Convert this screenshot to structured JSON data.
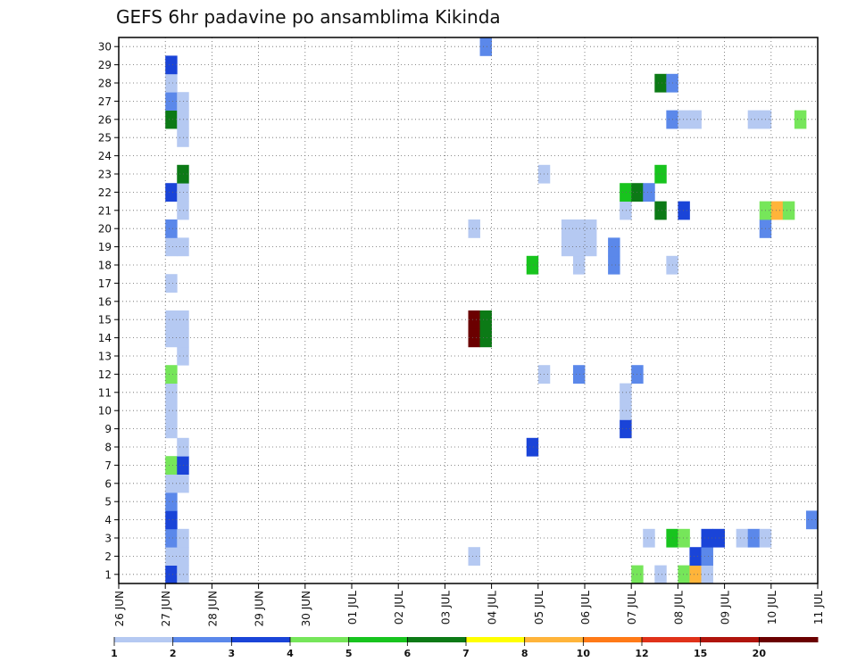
{
  "chart_data": {
    "type": "heatmap",
    "title": "GEFS 6hr padavine po ansamblima Kikinda",
    "x_tick_labels": [
      "26 JUN",
      "27 JUN",
      "28 JUN",
      "29 JUN",
      "30 JUN",
      "01 JUL",
      "02 JUL",
      "03 JUL",
      "04 JUL",
      "05 JUL",
      "06 JUL",
      "07 JUL",
      "08 JUL",
      "09 JUL",
      "10 JUL",
      "11 JUL"
    ],
    "y_tick_labels": [
      "1",
      "2",
      "3",
      "4",
      "5",
      "6",
      "7",
      "8",
      "9",
      "10",
      "11",
      "12",
      "13",
      "14",
      "15",
      "16",
      "17",
      "18",
      "19",
      "20",
      "21",
      "22",
      "23",
      "24",
      "25",
      "26",
      "27",
      "28",
      "29",
      "30"
    ],
    "ylim": [
      0.5,
      30.5
    ],
    "steps_per_day": 4,
    "grid": "dotted",
    "legend": {
      "position": "bottom",
      "labels": [
        "1",
        "2",
        "3",
        "4",
        "5",
        "6",
        "7",
        "8",
        "10",
        "12",
        "15",
        "20"
      ],
      "colors": [
        "#b5c9f2",
        "#5b88ea",
        "#1a44d8",
        "#76e65a",
        "#18c41e",
        "#0c7a16",
        "#ffff00",
        "#ffb43a",
        "#ff7a18",
        "#e0321a",
        "#b0140c",
        "#6b0000"
      ]
    },
    "cells": [
      {
        "t": 4,
        "m": 1,
        "c": "#1a44d8"
      },
      {
        "t": 5,
        "m": 1,
        "c": "#b5c9f2"
      },
      {
        "t": 4,
        "m": 2,
        "c": "#b5c9f2"
      },
      {
        "t": 5,
        "m": 2,
        "c": "#b5c9f2"
      },
      {
        "t": 4,
        "m": 3,
        "c": "#5b88ea"
      },
      {
        "t": 5,
        "m": 3,
        "c": "#b5c9f2"
      },
      {
        "t": 4,
        "m": 4,
        "c": "#1a44d8"
      },
      {
        "t": 4,
        "m": 5,
        "c": "#5b88ea"
      },
      {
        "t": 4,
        "m": 6,
        "c": "#b5c9f2"
      },
      {
        "t": 5,
        "m": 6,
        "c": "#b5c9f2"
      },
      {
        "t": 4,
        "m": 7,
        "c": "#76e65a"
      },
      {
        "t": 5,
        "m": 7,
        "c": "#1a44d8"
      },
      {
        "t": 5,
        "m": 8,
        "c": "#b5c9f2"
      },
      {
        "t": 4,
        "m": 9,
        "c": "#b5c9f2"
      },
      {
        "t": 4,
        "m": 10,
        "c": "#b5c9f2"
      },
      {
        "t": 4,
        "m": 11,
        "c": "#b5c9f2"
      },
      {
        "t": 4,
        "m": 12,
        "c": "#76e65a"
      },
      {
        "t": 5,
        "m": 13,
        "c": "#b5c9f2"
      },
      {
        "t": 4,
        "m": 14,
        "c": "#b5c9f2"
      },
      {
        "t": 5,
        "m": 14,
        "c": "#b5c9f2"
      },
      {
        "t": 4,
        "m": 15,
        "c": "#b5c9f2"
      },
      {
        "t": 5,
        "m": 15,
        "c": "#b5c9f2"
      },
      {
        "t": 4,
        "m": 17,
        "c": "#b5c9f2"
      },
      {
        "t": 4,
        "m": 19,
        "c": "#b5c9f2"
      },
      {
        "t": 5,
        "m": 19,
        "c": "#b5c9f2"
      },
      {
        "t": 4,
        "m": 20,
        "c": "#5b88ea"
      },
      {
        "t": 5,
        "m": 21,
        "c": "#b5c9f2"
      },
      {
        "t": 4,
        "m": 22,
        "c": "#1a44d8"
      },
      {
        "t": 5,
        "m": 22,
        "c": "#b5c9f2"
      },
      {
        "t": 5,
        "m": 23,
        "c": "#0c7a16"
      },
      {
        "t": 5,
        "m": 25,
        "c": "#b5c9f2"
      },
      {
        "t": 4,
        "m": 26,
        "c": "#0c7a16"
      },
      {
        "t": 5,
        "m": 26,
        "c": "#b5c9f2"
      },
      {
        "t": 4,
        "m": 27,
        "c": "#5b88ea"
      },
      {
        "t": 5,
        "m": 27,
        "c": "#b5c9f2"
      },
      {
        "t": 4,
        "m": 28,
        "c": "#b5c9f2"
      },
      {
        "t": 4,
        "m": 29,
        "c": "#1a44d8"
      },
      {
        "t": 31,
        "m": 30,
        "c": "#5b88ea"
      },
      {
        "t": 30,
        "m": 2,
        "c": "#b5c9f2"
      },
      {
        "t": 30,
        "m": 14,
        "c": "#6b0000"
      },
      {
        "t": 31,
        "m": 14,
        "c": "#0c7a16"
      },
      {
        "t": 30,
        "m": 15,
        "c": "#6b0000"
      },
      {
        "t": 31,
        "m": 15,
        "c": "#0c7a16"
      },
      {
        "t": 30,
        "m": 20,
        "c": "#b5c9f2"
      },
      {
        "t": 35,
        "m": 8,
        "c": "#1a44d8"
      },
      {
        "t": 36,
        "m": 12,
        "c": "#b5c9f2"
      },
      {
        "t": 35,
        "m": 18,
        "c": "#18c41e"
      },
      {
        "t": 36,
        "m": 23,
        "c": "#b5c9f2"
      },
      {
        "t": 39,
        "m": 12,
        "c": "#5b88ea"
      },
      {
        "t": 39,
        "m": 18,
        "c": "#b5c9f2"
      },
      {
        "t": 38,
        "m": 19,
        "c": "#b5c9f2"
      },
      {
        "t": 39,
        "m": 19,
        "c": "#b5c9f2"
      },
      {
        "t": 40,
        "m": 19,
        "c": "#b5c9f2"
      },
      {
        "t": 38,
        "m": 20,
        "c": "#b5c9f2"
      },
      {
        "t": 39,
        "m": 20,
        "c": "#b5c9f2"
      },
      {
        "t": 40,
        "m": 20,
        "c": "#b5c9f2"
      },
      {
        "t": 42,
        "m": 18,
        "c": "#5b88ea"
      },
      {
        "t": 42,
        "m": 19,
        "c": "#5b88ea"
      },
      {
        "t": 44,
        "m": 1,
        "c": "#76e65a"
      },
      {
        "t": 46,
        "m": 1,
        "c": "#b5c9f2"
      },
      {
        "t": 48,
        "m": 1,
        "c": "#76e65a"
      },
      {
        "t": 49,
        "m": 1,
        "c": "#ffb43a"
      },
      {
        "t": 50,
        "m": 1,
        "c": "#b5c9f2"
      },
      {
        "t": 49,
        "m": 2,
        "c": "#1a44d8"
      },
      {
        "t": 50,
        "m": 2,
        "c": "#5b88ea"
      },
      {
        "t": 45,
        "m": 3,
        "c": "#b5c9f2"
      },
      {
        "t": 47,
        "m": 3,
        "c": "#18c41e"
      },
      {
        "t": 48,
        "m": 3,
        "c": "#76e65a"
      },
      {
        "t": 50,
        "m": 3,
        "c": "#1a44d8"
      },
      {
        "t": 51,
        "m": 3,
        "c": "#1a44d8"
      },
      {
        "t": 53,
        "m": 3,
        "c": "#b5c9f2"
      },
      {
        "t": 54,
        "m": 3,
        "c": "#5b88ea"
      },
      {
        "t": 55,
        "m": 3,
        "c": "#b5c9f2"
      },
      {
        "t": 59,
        "m": 4,
        "c": "#5b88ea"
      },
      {
        "t": 43,
        "m": 9,
        "c": "#1a44d8"
      },
      {
        "t": 43,
        "m": 10,
        "c": "#b5c9f2"
      },
      {
        "t": 43,
        "m": 11,
        "c": "#b5c9f2"
      },
      {
        "t": 44,
        "m": 12,
        "c": "#5b88ea"
      },
      {
        "t": 47,
        "m": 18,
        "c": "#b5c9f2"
      },
      {
        "t": 55,
        "m": 20,
        "c": "#5b88ea"
      },
      {
        "t": 43,
        "m": 21,
        "c": "#b5c9f2"
      },
      {
        "t": 46,
        "m": 21,
        "c": "#0c7a16"
      },
      {
        "t": 48,
        "m": 21,
        "c": "#1a44d8"
      },
      {
        "t": 55,
        "m": 21,
        "c": "#76e65a"
      },
      {
        "t": 56,
        "m": 21,
        "c": "#ffb43a"
      },
      {
        "t": 57,
        "m": 21,
        "c": "#76e65a"
      },
      {
        "t": 43,
        "m": 22,
        "c": "#18c41e"
      },
      {
        "t": 44,
        "m": 22,
        "c": "#0c7a16"
      },
      {
        "t": 45,
        "m": 22,
        "c": "#5b88ea"
      },
      {
        "t": 46,
        "m": 23,
        "c": "#18c41e"
      },
      {
        "t": 47,
        "m": 26,
        "c": "#5b88ea"
      },
      {
        "t": 48,
        "m": 26,
        "c": "#b5c9f2"
      },
      {
        "t": 49,
        "m": 26,
        "c": "#b5c9f2"
      },
      {
        "t": 54,
        "m": 26,
        "c": "#b5c9f2"
      },
      {
        "t": 55,
        "m": 26,
        "c": "#b5c9f2"
      },
      {
        "t": 58,
        "m": 26,
        "c": "#76e65a"
      },
      {
        "t": 46,
        "m": 28,
        "c": "#0c7a16"
      },
      {
        "t": 47,
        "m": 28,
        "c": "#5b88ea"
      }
    ]
  }
}
